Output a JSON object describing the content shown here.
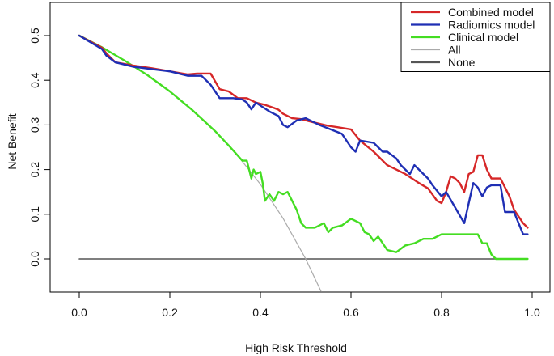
{
  "chart_data": {
    "type": "line",
    "xlabel": "High Risk Threshold",
    "ylabel": "Net Benefit",
    "xlim": [
      0,
      1
    ],
    "ylim": [
      -0.07,
      0.5
    ],
    "xticks": [
      "0.0",
      "0.2",
      "0.4",
      "0.6",
      "0.8",
      "1.0"
    ],
    "yticks": [
      "0.0",
      "0.1",
      "0.2",
      "0.3",
      "0.4",
      "0.5"
    ],
    "grid": false,
    "legend_position": "top-right",
    "series": [
      {
        "name": "Combined model",
        "color": "#d62728",
        "x": [
          0,
          0.05,
          0.06,
          0.08,
          0.12,
          0.16,
          0.2,
          0.24,
          0.26,
          0.29,
          0.31,
          0.33,
          0.35,
          0.37,
          0.39,
          0.41,
          0.43,
          0.44,
          0.45,
          0.47,
          0.49,
          0.52,
          0.55,
          0.57,
          0.6,
          0.62,
          0.65,
          0.68,
          0.72,
          0.75,
          0.77,
          0.79,
          0.8,
          0.81,
          0.82,
          0.83,
          0.84,
          0.85,
          0.86,
          0.87,
          0.88,
          0.89,
          0.9,
          0.91,
          0.93,
          0.95,
          0.96,
          0.98,
          0.99
        ],
        "y": [
          0.5,
          0.473,
          0.46,
          0.44,
          0.433,
          0.427,
          0.42,
          0.413,
          0.415,
          0.415,
          0.38,
          0.375,
          0.36,
          0.36,
          0.35,
          0.345,
          0.338,
          0.334,
          0.325,
          0.315,
          0.313,
          0.305,
          0.298,
          0.295,
          0.29,
          0.265,
          0.24,
          0.21,
          0.19,
          0.17,
          0.158,
          0.13,
          0.125,
          0.15,
          0.185,
          0.18,
          0.17,
          0.15,
          0.19,
          0.195,
          0.232,
          0.232,
          0.2,
          0.18,
          0.18,
          0.14,
          0.11,
          0.08,
          0.07
        ]
      },
      {
        "name": "Radiomics model",
        "color": "#1f2fb4",
        "x": [
          0,
          0.05,
          0.06,
          0.08,
          0.12,
          0.16,
          0.2,
          0.24,
          0.27,
          0.29,
          0.31,
          0.34,
          0.36,
          0.37,
          0.38,
          0.39,
          0.42,
          0.44,
          0.45,
          0.46,
          0.48,
          0.5,
          0.53,
          0.55,
          0.58,
          0.6,
          0.61,
          0.62,
          0.65,
          0.67,
          0.68,
          0.7,
          0.71,
          0.73,
          0.74,
          0.75,
          0.77,
          0.78,
          0.8,
          0.81,
          0.83,
          0.85,
          0.87,
          0.88,
          0.89,
          0.9,
          0.91,
          0.93,
          0.94,
          0.96,
          0.97,
          0.98,
          0.99
        ],
        "y": [
          0.5,
          0.47,
          0.455,
          0.44,
          0.43,
          0.425,
          0.42,
          0.41,
          0.41,
          0.39,
          0.36,
          0.36,
          0.357,
          0.35,
          0.335,
          0.35,
          0.33,
          0.32,
          0.3,
          0.295,
          0.31,
          0.315,
          0.3,
          0.292,
          0.28,
          0.25,
          0.24,
          0.265,
          0.26,
          0.24,
          0.24,
          0.225,
          0.21,
          0.19,
          0.21,
          0.2,
          0.18,
          0.165,
          0.14,
          0.15,
          0.115,
          0.08,
          0.17,
          0.16,
          0.14,
          0.16,
          0.165,
          0.165,
          0.105,
          0.105,
          0.08,
          0.055,
          0.055
        ]
      },
      {
        "name": "Clinical model",
        "color": "#44dd22",
        "x": [
          0,
          0.05,
          0.1,
          0.15,
          0.2,
          0.25,
          0.3,
          0.33,
          0.36,
          0.37,
          0.38,
          0.385,
          0.39,
          0.4,
          0.405,
          0.41,
          0.42,
          0.43,
          0.44,
          0.45,
          0.46,
          0.47,
          0.48,
          0.49,
          0.5,
          0.52,
          0.54,
          0.55,
          0.56,
          0.58,
          0.6,
          0.62,
          0.63,
          0.64,
          0.65,
          0.66,
          0.68,
          0.7,
          0.72,
          0.74,
          0.76,
          0.78,
          0.8,
          0.82,
          0.84,
          0.86,
          0.87,
          0.88,
          0.89,
          0.9,
          0.91,
          0.92,
          0.95,
          0.99
        ],
        "y": [
          0.5,
          0.474,
          0.444,
          0.412,
          0.375,
          0.333,
          0.286,
          0.254,
          0.22,
          0.22,
          0.18,
          0.2,
          0.19,
          0.195,
          0.17,
          0.13,
          0.145,
          0.13,
          0.15,
          0.145,
          0.15,
          0.13,
          0.11,
          0.08,
          0.07,
          0.07,
          0.08,
          0.06,
          0.07,
          0.075,
          0.09,
          0.08,
          0.06,
          0.055,
          0.04,
          0.05,
          0.02,
          0.015,
          0.03,
          0.035,
          0.045,
          0.045,
          0.055,
          0.055,
          0.055,
          0.055,
          0.055,
          0.055,
          0.035,
          0.035,
          0.01,
          0,
          0,
          0
        ]
      },
      {
        "name": "All",
        "color": "#aaaaaa",
        "x": [
          0,
          0.05,
          0.1,
          0.15,
          0.2,
          0.25,
          0.3,
          0.35,
          0.4,
          0.45,
          0.5,
          0.534
        ],
        "y": [
          0.5,
          0.474,
          0.444,
          0.412,
          0.375,
          0.333,
          0.286,
          0.231,
          0.167,
          0.091,
          0,
          -0.073
        ]
      },
      {
        "name": "None",
        "color": "#555555",
        "x": [
          0,
          0.99
        ],
        "y": [
          0,
          0
        ]
      }
    ]
  }
}
